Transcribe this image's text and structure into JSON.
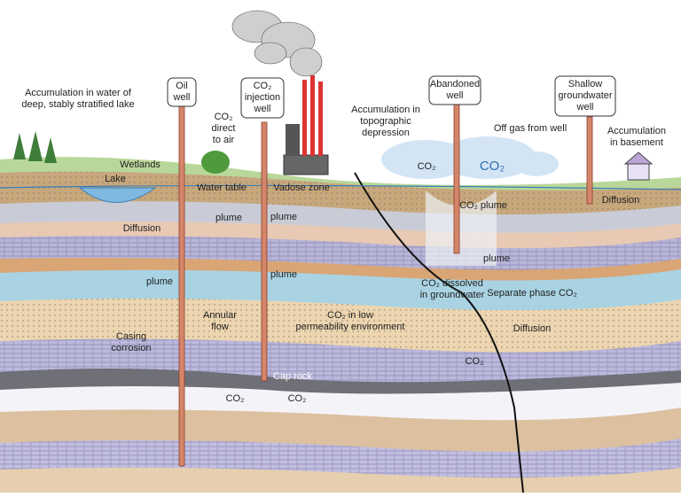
{
  "labels": [
    {
      "lines": [
        "Accumulation in water of",
        "deep, stably stratified lake"
      ]
    },
    {
      "lines": [
        "Oil",
        "well"
      ]
    },
    {
      "lines": [
        "CO₂",
        "injection",
        "well"
      ]
    },
    {
      "lines": [
        "Abandoned",
        "well"
      ]
    },
    {
      "lines": [
        "Shallow",
        "groundwater",
        "well"
      ]
    },
    {
      "lines": [
        "Accumulation in",
        "topographic",
        "depression"
      ]
    },
    {
      "lines": [
        "CO₂",
        "direct",
        "to air"
      ]
    },
    {
      "lines": [
        "Off gas from well"
      ]
    },
    {
      "lines": [
        "Accumulation",
        "in basement"
      ]
    },
    {
      "lines": [
        "Wetlands"
      ]
    },
    {
      "lines": [
        "Lake"
      ]
    },
    {
      "lines": [
        "Water table"
      ]
    },
    {
      "lines": [
        "Vadose zone"
      ]
    },
    {
      "lines": [
        "CO₂"
      ]
    },
    {
      "lines": [
        "CO₂"
      ]
    },
    {
      "lines": [
        "CO₂ plume"
      ]
    },
    {
      "lines": [
        "Diffusion"
      ]
    },
    {
      "lines": [
        "Diffusion"
      ]
    },
    {
      "lines": [
        "plume"
      ]
    },
    {
      "lines": [
        "plume"
      ]
    },
    {
      "lines": [
        "plume"
      ]
    },
    {
      "lines": [
        "plume"
      ]
    },
    {
      "lines": [
        "plume"
      ]
    },
    {
      "lines": [
        "CO₂ dissolved",
        "in groundwater"
      ]
    },
    {
      "lines": [
        "Separate phase CO₂"
      ]
    },
    {
      "lines": [
        "Annular",
        "flow"
      ]
    },
    {
      "lines": [
        "CO₂ in low",
        "permeability environment"
      ]
    },
    {
      "lines": [
        "Diffusion"
      ]
    },
    {
      "lines": [
        "Casing",
        "corrosion"
      ]
    },
    {
      "lines": [
        "CO₂"
      ]
    },
    {
      "lines": [
        "Cap rock"
      ]
    },
    {
      "lines": [
        "CO₂"
      ]
    },
    {
      "lines": [
        "CO₂"
      ]
    }
  ]
}
